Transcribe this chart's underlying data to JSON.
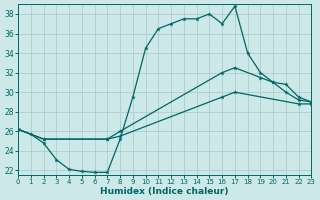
{
  "xlabel": "Humidex (Indice chaleur)",
  "bg_color": "#cce8e8",
  "grid_color": "#b0cccc",
  "line_color": "#006666",
  "xlim": [
    0,
    23
  ],
  "ylim": [
    21.5,
    39.0
  ],
  "yticks": [
    22,
    24,
    26,
    28,
    30,
    32,
    34,
    36,
    38
  ],
  "xticks": [
    0,
    1,
    2,
    3,
    4,
    5,
    6,
    7,
    8,
    9,
    10,
    11,
    12,
    13,
    14,
    15,
    16,
    17,
    18,
    19,
    20,
    21,
    22,
    23
  ],
  "line1_x": [
    0,
    1,
    2,
    3,
    4,
    5,
    6,
    7,
    8,
    9,
    10,
    11,
    12,
    13,
    14,
    15,
    16,
    17,
    18,
    19,
    20,
    21,
    22,
    23
  ],
  "line1_y": [
    26.2,
    25.7,
    24.8,
    23.1,
    22.1,
    21.9,
    21.8,
    21.8,
    25.2,
    29.5,
    34.5,
    36.5,
    37.0,
    37.5,
    37.5,
    38.0,
    37.0,
    38.8,
    34.0,
    32.0,
    31.0,
    30.0,
    29.2,
    29.0
  ],
  "line2_x": [
    0,
    2,
    7,
    8,
    16,
    17,
    19,
    20,
    21,
    22,
    23
  ],
  "line2_y": [
    26.2,
    25.2,
    25.2,
    26.0,
    32.0,
    32.5,
    31.5,
    31.0,
    30.8,
    29.5,
    29.0
  ],
  "line3_x": [
    0,
    2,
    7,
    8,
    16,
    17,
    22,
    23
  ],
  "line3_y": [
    26.2,
    25.2,
    25.2,
    25.5,
    29.5,
    30.0,
    28.8,
    28.8
  ]
}
